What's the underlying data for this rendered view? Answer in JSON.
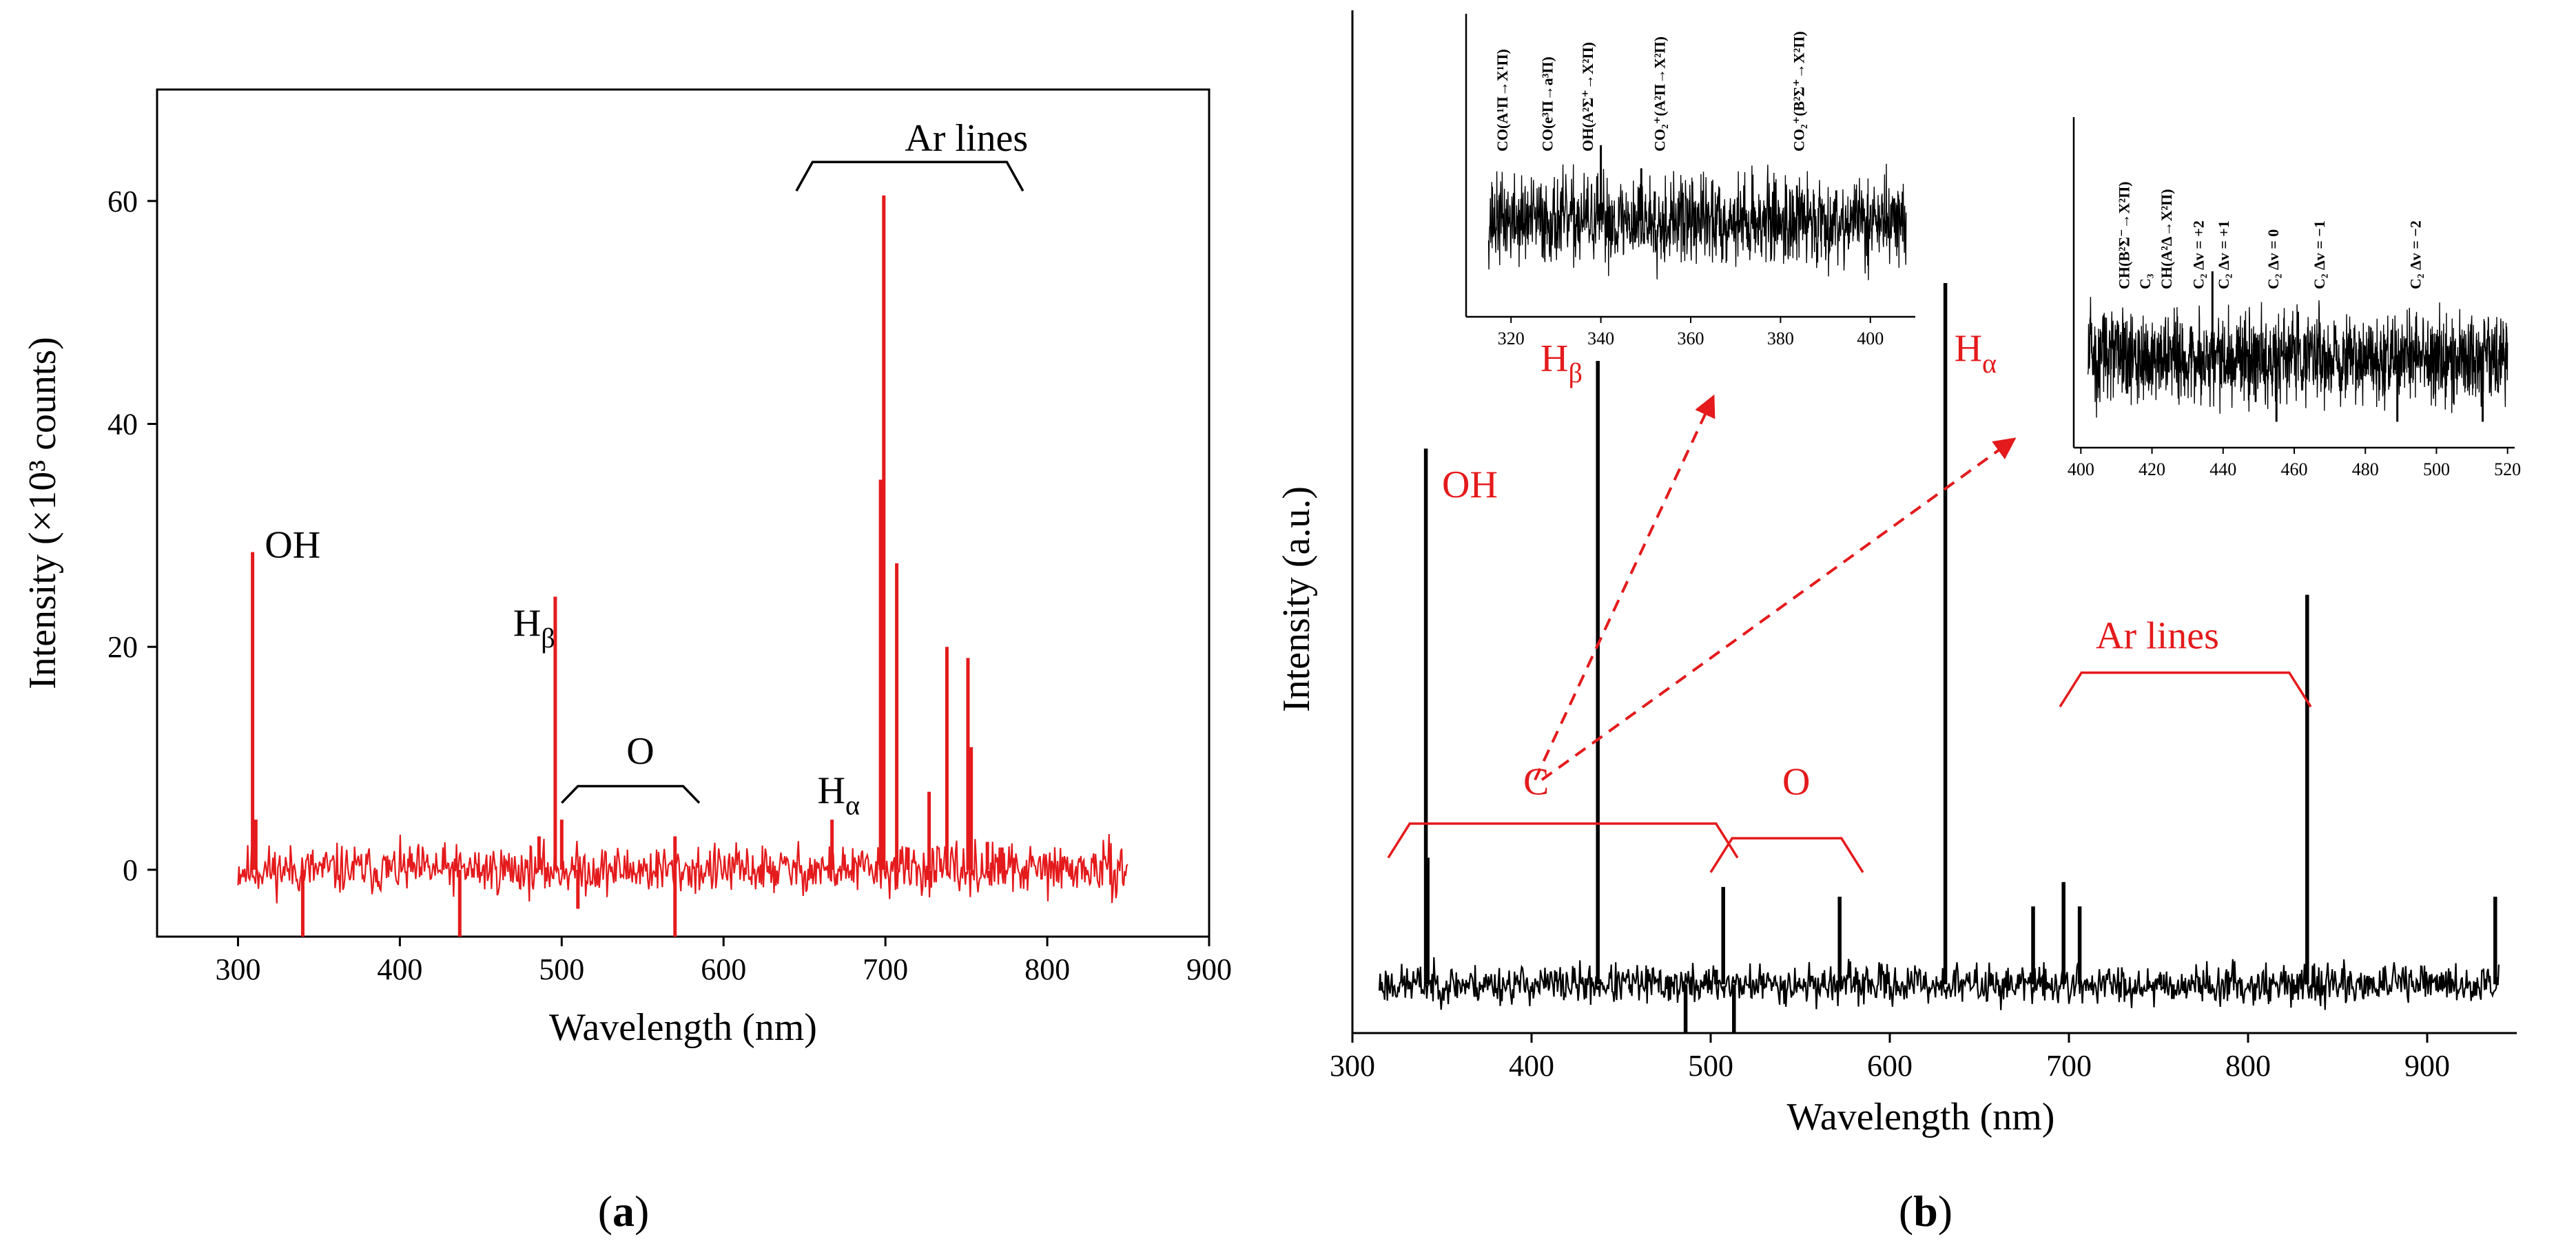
{
  "chart_data": [
    {
      "id": "a",
      "type": "line",
      "panel_label": "a",
      "xlabel": "Wavelength (nm)",
      "ylabel": "Intensity (×10³ counts)",
      "xlim": [
        250,
        900
      ],
      "ylim": [
        -6,
        70
      ],
      "xticks": [
        300,
        400,
        500,
        600,
        700,
        800,
        900
      ],
      "yticks": [
        0,
        20,
        40,
        60
      ],
      "line_color": "#e41a1c",
      "noise_range": [
        300,
        850
      ],
      "peaks": [
        {
          "x": 309,
          "y": 28.5
        },
        {
          "x": 311,
          "y": 4.5
        },
        {
          "x": 340,
          "y": -6
        },
        {
          "x": 437,
          "y": -6
        },
        {
          "x": 486,
          "y": 3.0
        },
        {
          "x": 496,
          "y": 24.5
        },
        {
          "x": 500,
          "y": 4.5
        },
        {
          "x": 510,
          "y": -3.5
        },
        {
          "x": 570,
          "y": -6
        },
        {
          "x": 570,
          "y": 3.0
        },
        {
          "x": 667,
          "y": 4.5
        },
        {
          "x": 697,
          "y": 35.0
        },
        {
          "x": 699,
          "y": 60.5
        },
        {
          "x": 707,
          "y": 27.5
        },
        {
          "x": 714,
          "y": 2.0
        },
        {
          "x": 727,
          "y": 7.0
        },
        {
          "x": 738,
          "y": 20.0
        },
        {
          "x": 751,
          "y": 19.0
        },
        {
          "x": 753,
          "y": 11.0
        },
        {
          "x": 763,
          "y": 2.5
        },
        {
          "x": 772,
          "y": 2.0
        }
      ],
      "annotations": [
        {
          "text": "OH",
          "x": 308,
          "y": 28
        },
        {
          "text": "H",
          "sub": "β",
          "x": 470,
          "y": 21
        },
        {
          "text": "O",
          "x": 540,
          "y": 9.5
        },
        {
          "text": "H",
          "sub": "α",
          "x": 658,
          "y": 6.0
        },
        {
          "text": "Ar lines",
          "x": 712,
          "y": 64.5
        }
      ],
      "brackets": [
        {
          "x1": 645,
          "x2": 785,
          "y": 63.5
        },
        {
          "x1": 500,
          "x2": 585,
          "y": 7.5
        }
      ]
    },
    {
      "id": "b",
      "type": "line",
      "panel_label": "b",
      "xlabel": "Wavelength (nm)",
      "ylabel": "Intensity (a.u.)",
      "xlim": [
        300,
        950
      ],
      "ylim": [
        -5,
        100
      ],
      "xticks": [
        300,
        400,
        500,
        600,
        700,
        800,
        900
      ],
      "line_color": "#000000",
      "accent_color": "#e41a1c",
      "noise_range": [
        315,
        940
      ],
      "peaks": [
        {
          "x": 341,
          "y": 55.0
        },
        {
          "x": 342,
          "y": 13.0
        },
        {
          "x": 437,
          "y": 64.0
        },
        {
          "x": 455,
          "y": -0.5
        },
        {
          "x": 486,
          "y": -5
        },
        {
          "x": 497,
          "y": 0.5
        },
        {
          "x": 503,
          "y": 1.5
        },
        {
          "x": 507,
          "y": 10.0
        },
        {
          "x": 513,
          "y": -5
        },
        {
          "x": 572,
          "y": 9.0
        },
        {
          "x": 631,
          "y": 72.0
        },
        {
          "x": 680,
          "y": 8.0
        },
        {
          "x": 697,
          "y": 10.5
        },
        {
          "x": 706,
          "y": 8.0
        },
        {
          "x": 751,
          "y": 1.0
        },
        {
          "x": 758,
          "y": -1.5
        },
        {
          "x": 833,
          "y": 40.0
        },
        {
          "x": 938,
          "y": 9.0
        }
      ],
      "annotations": [
        {
          "text": "OH",
          "x": 350,
          "y": 50
        },
        {
          "text": "H",
          "sub": "β",
          "x": 405,
          "y": 63
        },
        {
          "text": "H",
          "sub": "α",
          "x": 636,
          "y": 64
        },
        {
          "text": "C",
          "x": 405,
          "y": 19.5
        },
        {
          "text": "O",
          "x": 540,
          "y": 19.5
        },
        {
          "text": "Ar lines",
          "x": 715,
          "y": 34.5
        }
      ],
      "brackets": [
        {
          "x1": 320,
          "x2": 515,
          "y": 16.5
        },
        {
          "x1": 500,
          "x2": 585,
          "y": 15.0
        },
        {
          "x1": 695,
          "x2": 835,
          "y": 32.0
        }
      ],
      "insets": [
        {
          "id": "inset1",
          "xlim": [
            310,
            410
          ],
          "xticks": [
            320,
            340,
            360,
            380,
            400
          ],
          "noise_range": [
            315,
            408
          ],
          "peaks": [
            {
              "x": 337,
              "y": 1.1
            },
            {
              "x": 340,
              "y": 2.6
            },
            {
              "x": 349,
              "y": 1.8
            },
            {
              "x": 352,
              "y": 1.0
            }
          ],
          "labels": [
            {
              "text": "CO(A¹Π→X¹Π)",
              "x": 318
            },
            {
              "text": "CO(e³Π→a³Π)",
              "x": 328
            },
            {
              "text": "OH(A²Σ⁺→X²Π)",
              "x": 337
            },
            {
              "text": "CO₂⁺(A²Π→X²Π)",
              "x": 353
            },
            {
              "text": "CO₂⁺(B²Σ⁺→X²Π)",
              "x": 384
            }
          ]
        },
        {
          "id": "inset2",
          "xlim": [
            398,
            522
          ],
          "xticks": [
            400,
            420,
            440,
            460,
            480,
            500,
            520
          ],
          "noise_range": [
            402,
            520
          ],
          "peaks": [
            {
              "x": 431,
              "y": 1.1
            },
            {
              "x": 437,
              "y": 3.0
            },
            {
              "x": 455,
              "y": -2.2
            },
            {
              "x": 489,
              "y": -2.2
            },
            {
              "x": 513,
              "y": -2.2
            }
          ],
          "labels": [
            {
              "text": "CH(B²Σ⁻→X²Π)",
              "x": 412
            },
            {
              "text": "C₃",
              "x": 418
            },
            {
              "text": "CH(A²Δ→X²Π)",
              "x": 424
            },
            {
              "text": "C₂ Δv = +2",
              "x": 433
            },
            {
              "text": "C₂ Δv = +1",
              "x": 440
            },
            {
              "text": "C₂ Δv = 0",
              "x": 454
            },
            {
              "text": "C₂ Δv = −1",
              "x": 467
            },
            {
              "text": "C₂ Δv = −2",
              "x": 494
            }
          ]
        }
      ]
    }
  ]
}
